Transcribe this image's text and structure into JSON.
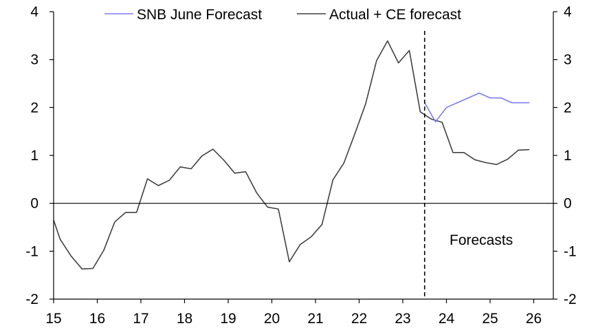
{
  "chart_data": {
    "type": "line",
    "title": "",
    "xlabel": "",
    "ylabel": "",
    "xlim": [
      2015.0,
      2026.4
    ],
    "ylim": [
      -2,
      4
    ],
    "x_ticks": [
      15,
      16,
      17,
      18,
      19,
      20,
      21,
      22,
      23,
      24,
      25,
      26
    ],
    "x_tick_labels": [
      "15",
      "16",
      "17",
      "18",
      "19",
      "20",
      "21",
      "22",
      "23",
      "24",
      "25",
      "26"
    ],
    "y_ticks": [
      -2,
      -1,
      0,
      1,
      2,
      3,
      4
    ],
    "y_tick_labels_left": [
      "-2",
      "-1",
      "0",
      "1",
      "2",
      "3",
      "4"
    ],
    "y_tick_labels_right": [
      "-2",
      "-1",
      "0",
      "1",
      "2",
      "3",
      "4"
    ],
    "zero_line": true,
    "forecast_divider_x": 2023.5,
    "annotation": "Forecasts",
    "legend_position": "top",
    "series": [
      {
        "name": "SNB June Forecast",
        "color": "#7b7bef",
        "points": [
          [
            2023.5,
            2.1
          ],
          [
            2023.75,
            1.7
          ],
          [
            2024.0,
            2.0
          ],
          [
            2024.25,
            2.1
          ],
          [
            2024.5,
            2.2
          ],
          [
            2024.75,
            2.3
          ],
          [
            2025.0,
            2.2
          ],
          [
            2025.25,
            2.2
          ],
          [
            2025.5,
            2.1
          ],
          [
            2025.75,
            2.1
          ],
          [
            2025.9,
            2.1
          ]
        ]
      },
      {
        "name": "Actual + CE forecast",
        "color": "#404040",
        "points": [
          [
            2015.0,
            -0.35
          ],
          [
            2015.15,
            -0.75
          ],
          [
            2015.4,
            -1.1
          ],
          [
            2015.65,
            -1.37
          ],
          [
            2015.9,
            -1.36
          ],
          [
            2016.15,
            -0.98
          ],
          [
            2016.4,
            -0.39
          ],
          [
            2016.65,
            -0.19
          ],
          [
            2016.9,
            -0.19
          ],
          [
            2017.15,
            0.51
          ],
          [
            2017.4,
            0.37
          ],
          [
            2017.65,
            0.48
          ],
          [
            2017.9,
            0.76
          ],
          [
            2018.15,
            0.72
          ],
          [
            2018.4,
            0.99
          ],
          [
            2018.65,
            1.13
          ],
          [
            2018.9,
            0.9
          ],
          [
            2019.15,
            0.63
          ],
          [
            2019.4,
            0.66
          ],
          [
            2019.65,
            0.22
          ],
          [
            2019.9,
            -0.08
          ],
          [
            2020.15,
            -0.12
          ],
          [
            2020.4,
            -1.22
          ],
          [
            2020.65,
            -0.86
          ],
          [
            2020.9,
            -0.7
          ],
          [
            2021.15,
            -0.44
          ],
          [
            2021.4,
            0.49
          ],
          [
            2021.65,
            0.84
          ],
          [
            2021.9,
            1.45
          ],
          [
            2022.15,
            2.08
          ],
          [
            2022.4,
            2.98
          ],
          [
            2022.65,
            3.39
          ],
          [
            2022.9,
            2.93
          ],
          [
            2023.15,
            3.19
          ],
          [
            2023.4,
            1.91
          ],
          [
            2023.65,
            1.76
          ],
          [
            2023.9,
            1.69
          ],
          [
            2024.15,
            1.06
          ],
          [
            2024.4,
            1.06
          ],
          [
            2024.65,
            0.91
          ],
          [
            2024.9,
            0.85
          ],
          [
            2025.15,
            0.81
          ],
          [
            2025.4,
            0.92
          ],
          [
            2025.65,
            1.11
          ],
          [
            2025.9,
            1.12
          ]
        ]
      }
    ]
  }
}
